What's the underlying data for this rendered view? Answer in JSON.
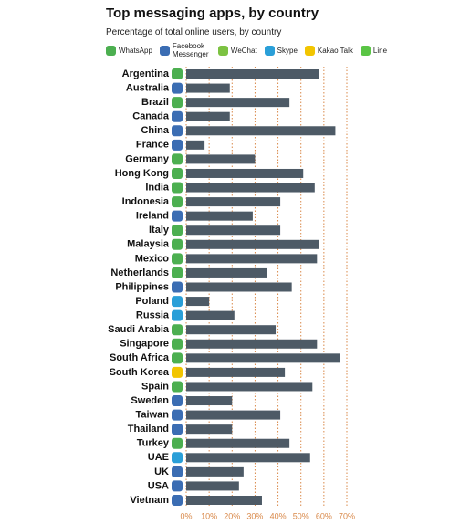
{
  "chart_data": {
    "type": "bar",
    "orientation": "horizontal",
    "title": "Top messaging apps, by country",
    "subtitle": "Percentage of total online users, by country",
    "apps": [
      {
        "name": "WhatsApp",
        "color": "#4caf50"
      },
      {
        "name": "Facebook Messenger",
        "color": "#3b6db3"
      },
      {
        "name": "WeChat",
        "color": "#7cc242"
      },
      {
        "name": "Skype",
        "color": "#2a9fd8"
      },
      {
        "name": "Kakao Talk",
        "color": "#f2c500"
      },
      {
        "name": "Line",
        "color": "#5ac545"
      }
    ],
    "categories": [
      "Argentina",
      "Australia",
      "Brazil",
      "Canada",
      "China",
      "France",
      "Germany",
      "Hong Kong",
      "India",
      "Indonesia",
      "Ireland",
      "Italy",
      "Malaysia",
      "Mexico",
      "Netherlands",
      "Philippines",
      "Poland",
      "Russia",
      "Saudi Arabia",
      "Singapore",
      "South Africa",
      "South Korea",
      "Spain",
      "Sweden",
      "Taiwan",
      "Thailand",
      "Turkey",
      "UAE",
      "UK",
      "USA",
      "Vietnam"
    ],
    "top_app": [
      "WhatsApp",
      "Facebook Messenger",
      "WhatsApp",
      "Facebook Messenger",
      "Facebook Messenger",
      "Facebook Messenger",
      "WhatsApp",
      "WhatsApp",
      "WhatsApp",
      "WhatsApp",
      "Facebook Messenger",
      "WhatsApp",
      "WhatsApp",
      "WhatsApp",
      "WhatsApp",
      "Facebook Messenger",
      "Skype",
      "Skype",
      "WhatsApp",
      "WhatsApp",
      "WhatsApp",
      "Kakao Talk",
      "WhatsApp",
      "Facebook Messenger",
      "Facebook Messenger",
      "Facebook Messenger",
      "WhatsApp",
      "Skype",
      "Facebook Messenger",
      "Facebook Messenger",
      "Facebook Messenger"
    ],
    "values": [
      58,
      19,
      45,
      19,
      65,
      8,
      30,
      51,
      56,
      41,
      29,
      41,
      58,
      57,
      35,
      46,
      10,
      21,
      39,
      57,
      67,
      43,
      55,
      20,
      41,
      20,
      45,
      54,
      25,
      23,
      33
    ],
    "color": "#4d5a66",
    "xlim": [
      0,
      70
    ],
    "xticks": [
      {
        "value": 0,
        "label": "0%"
      },
      {
        "value": 10,
        "label": "10%"
      },
      {
        "value": 20,
        "label": "20%"
      },
      {
        "value": 30,
        "label": "30%"
      },
      {
        "value": 40,
        "label": "40%"
      },
      {
        "value": 50,
        "label": "50%"
      },
      {
        "value": 60,
        "label": "60%"
      },
      {
        "value": 70,
        "label": "70%"
      }
    ],
    "grid": true,
    "grid_color": "#d9894a"
  }
}
